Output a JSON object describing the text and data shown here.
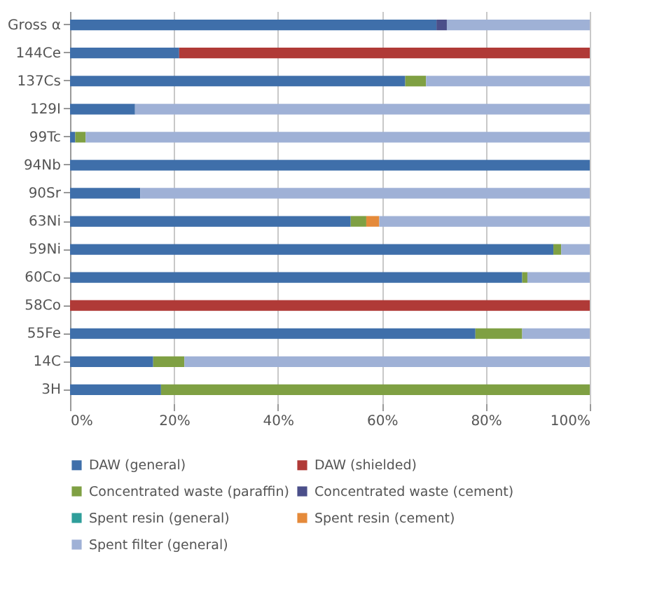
{
  "chart_data": {
    "type": "bar",
    "orientation": "horizontal",
    "stacked": true,
    "categories": [
      "Gross α",
      "144Ce",
      "137Cs",
      "129I",
      "99Tc",
      "94Nb",
      "90Sr",
      "63Ni",
      "59Ni",
      "60Co",
      "58Co",
      "55Fe",
      "14C",
      "3H"
    ],
    "series": [
      {
        "name": "DAW (general)",
        "color": "#3f6faa",
        "values": [
          70.5,
          21,
          64.5,
          12.5,
          1,
          100,
          13.5,
          54,
          93,
          87,
          0,
          78,
          16,
          17.5
        ]
      },
      {
        "name": "DAW (shielded)",
        "color": "#b03a37",
        "values": [
          0,
          79,
          0,
          0,
          0,
          0,
          0,
          0,
          0,
          0,
          100,
          0,
          0,
          0
        ]
      },
      {
        "name": "Concentrated waste (paraffin)",
        "color": "#7fa043",
        "values": [
          0,
          0,
          4,
          0,
          2,
          0,
          0,
          3,
          1.5,
          1,
          0,
          9,
          6,
          82.5
        ]
      },
      {
        "name": "Concentrated waste (cement)",
        "color": "#4b4f8a",
        "values": [
          2,
          0,
          0,
          0,
          0,
          0,
          0,
          0,
          0,
          0,
          0,
          0,
          0,
          0
        ]
      },
      {
        "name": "Spent resin (general)",
        "color": "#2f9e9a",
        "values": [
          0,
          0,
          0,
          0,
          0,
          0,
          0,
          0,
          0,
          0,
          0,
          0,
          0,
          0
        ]
      },
      {
        "name": "Spent resin (cement)",
        "color": "#e58a3a",
        "values": [
          0,
          0,
          0,
          0,
          0,
          0,
          0,
          2.5,
          0,
          0,
          0,
          0,
          0,
          0
        ]
      },
      {
        "name": "Spent filter (general)",
        "color": "#9fb1d6",
        "values": [
          27.5,
          0,
          31.5,
          87.5,
          97,
          0,
          86.5,
          40.5,
          5.5,
          12,
          0,
          13,
          78,
          0
        ]
      }
    ],
    "xlim": [
      0,
      100
    ],
    "xticks": [
      {
        "value": 0,
        "label": "0%"
      },
      {
        "value": 20,
        "label": "20%"
      },
      {
        "value": 40,
        "label": "40%"
      },
      {
        "value": 60,
        "label": "60%"
      },
      {
        "value": 80,
        "label": "80%"
      },
      {
        "value": 100,
        "label": "100%"
      }
    ],
    "grid": "x",
    "legend": "bottom"
  }
}
